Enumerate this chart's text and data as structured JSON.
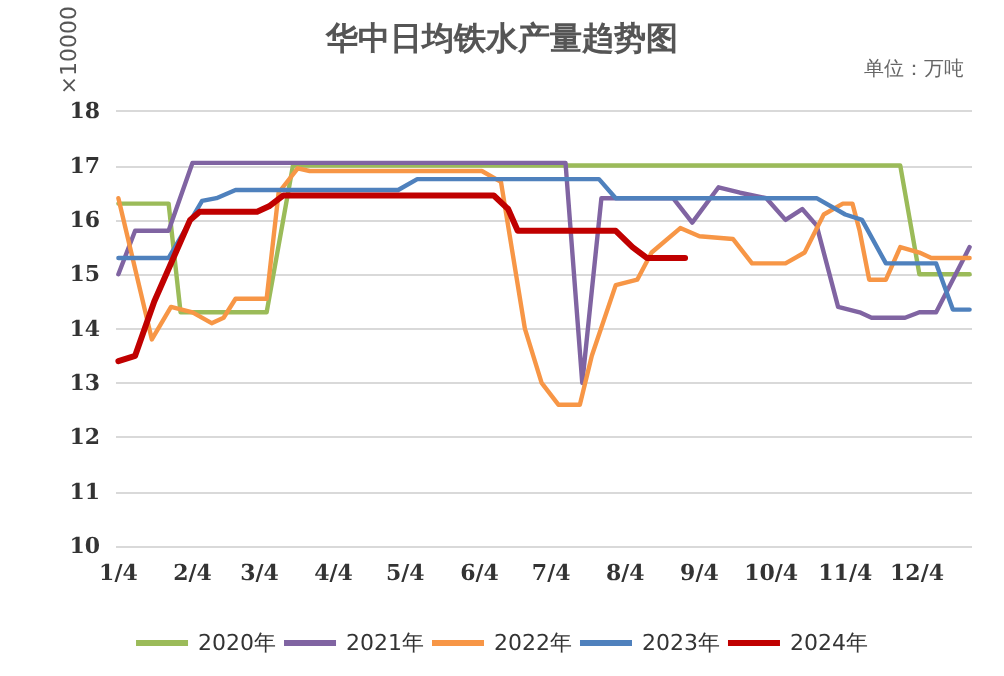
{
  "chart_data": {
    "type": "line",
    "title": "华中日均铁水产量趋势图",
    "ylabel": "×10000",
    "annotations": [
      "单位：万吨"
    ],
    "xlim": [
      "--01-03",
      "--12-27"
    ],
    "xticks": [
      {
        "value": "--01-04",
        "label": "1/4"
      },
      {
        "value": "--02-04",
        "label": "2/4"
      },
      {
        "value": "--03-04",
        "label": "3/4"
      },
      {
        "value": "--04-04",
        "label": "4/4"
      },
      {
        "value": "--05-04",
        "label": "5/4"
      },
      {
        "value": "--06-04",
        "label": "6/4"
      },
      {
        "value": "--07-04",
        "label": "7/4"
      },
      {
        "value": "--08-04",
        "label": "8/4"
      },
      {
        "value": "--09-04",
        "label": "9/4"
      },
      {
        "value": "--10-04",
        "label": "10/4"
      },
      {
        "value": "--11-04",
        "label": "11/4"
      },
      {
        "value": "--12-04",
        "label": "12/4"
      }
    ],
    "ylim": [
      10,
      18
    ],
    "yticks": [
      10,
      11,
      12,
      13,
      14,
      15,
      16,
      17,
      18
    ],
    "grid": "y",
    "legend": "bottom",
    "marker": "none",
    "line_style": "solid",
    "series": [
      {
        "name": "2020年",
        "color": "#9bbb59",
        "x": [
          "--01-04",
          "--01-25",
          "--01-30",
          "--03-07",
          "--03-18",
          "--11-27",
          "--12-05",
          "--12-26"
        ],
        "values": [
          16.3,
          16.3,
          14.3,
          14.3,
          17.0,
          17.0,
          15.0,
          15.0
        ]
      },
      {
        "name": "2021年",
        "color": "#8064a2",
        "x": [
          "--01-04",
          "--01-11",
          "--01-25",
          "--02-04",
          "--07-10",
          "--07-17",
          "--07-25",
          "--08-24",
          "--09-01",
          "--09-12",
          "--09-21",
          "--10-02",
          "--10-10",
          "--10-17",
          "--10-23",
          "--11-01",
          "--11-10",
          "--11-15",
          "--11-29",
          "--12-05",
          "--12-12",
          "--12-26"
        ],
        "values": [
          15.0,
          15.8,
          15.8,
          17.05,
          17.05,
          13.0,
          16.4,
          16.4,
          15.95,
          16.6,
          16.5,
          16.4,
          16.0,
          16.2,
          15.9,
          14.4,
          14.3,
          14.2,
          14.2,
          14.3,
          14.3,
          15.5
        ]
      },
      {
        "name": "2022年",
        "color": "#f79646",
        "x": [
          "--01-04",
          "--01-18",
          "--01-26",
          "--02-04",
          "--02-12",
          "--02-17",
          "--02-22",
          "--03-07",
          "--03-12",
          "--03-20",
          "--03-25",
          "--06-05",
          "--06-13",
          "--06-23",
          "--06-30",
          "--07-07",
          "--07-16",
          "--07-21",
          "--07-31",
          "--08-09",
          "--08-15",
          "--08-27",
          "--09-04",
          "--09-18",
          "--09-26",
          "--10-10",
          "--10-18",
          "--10-26",
          "--11-03",
          "--11-07",
          "--11-10",
          "--11-14",
          "--11-21",
          "--11-27",
          "--12-05",
          "--12-10",
          "--12-26"
        ],
        "values": [
          16.4,
          13.8,
          14.4,
          14.3,
          14.1,
          14.2,
          14.55,
          14.55,
          16.5,
          16.95,
          16.9,
          16.9,
          16.7,
          14.0,
          13.0,
          12.6,
          12.6,
          13.5,
          14.8,
          14.9,
          15.4,
          15.85,
          15.7,
          15.65,
          15.2,
          15.2,
          15.4,
          16.1,
          16.3,
          16.3,
          15.8,
          14.9,
          14.9,
          15.5,
          15.4,
          15.3,
          15.3
        ]
      },
      {
        "name": "2023年",
        "color": "#4f81bd",
        "x": [
          "--01-04",
          "--01-25",
          "--02-08",
          "--02-14",
          "--02-22",
          "--05-01",
          "--05-09",
          "--07-24",
          "--07-31",
          "--10-23",
          "--11-04",
          "--11-11",
          "--11-21",
          "--12-12",
          "--12-19",
          "--12-26"
        ],
        "values": [
          15.3,
          15.3,
          16.35,
          16.4,
          16.55,
          16.55,
          16.75,
          16.75,
          16.4,
          16.4,
          16.1,
          16.0,
          15.2,
          15.2,
          14.35,
          14.35
        ]
      },
      {
        "name": "2024年",
        "color": "#c00000",
        "x": [
          "--01-04",
          "--01-11",
          "--01-19",
          "--01-28",
          "--02-03",
          "--02-07",
          "--03-03",
          "--03-08",
          "--03-14",
          "--06-10",
          "--06-16",
          "--06-20",
          "--07-31",
          "--08-07",
          "--08-13",
          "--08-29"
        ],
        "values": [
          13.4,
          13.5,
          14.5,
          15.4,
          16.0,
          16.15,
          16.15,
          16.25,
          16.45,
          16.45,
          16.2,
          15.8,
          15.8,
          15.5,
          15.3,
          15.3
        ]
      }
    ]
  }
}
